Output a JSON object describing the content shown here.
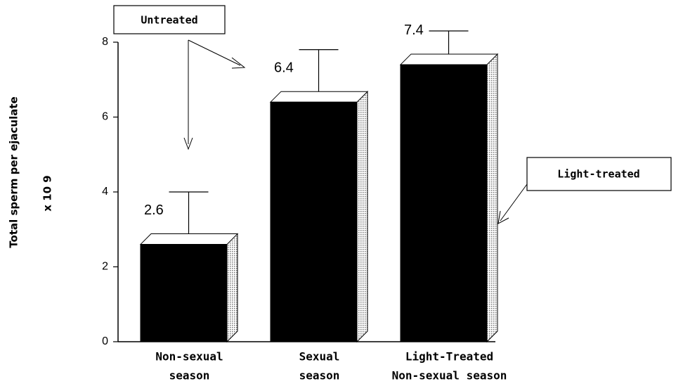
{
  "chart_data": {
    "type": "bar",
    "ylabel": "Total sperm per ejaculate",
    "ylabel_scale": "x 10 9",
    "categories": [
      [
        "Non-sexual",
        "season"
      ],
      [
        "Sexual",
        "season"
      ],
      [
        "Light-Treated",
        "Non-sexual season"
      ]
    ],
    "values": [
      2.6,
      6.4,
      7.4
    ],
    "value_labels": [
      "2.6",
      "6.4",
      "7.4"
    ],
    "errors": [
      1.4,
      1.4,
      0.9
    ],
    "color": "#000000",
    "side_color": "#bdbdbd",
    "ylim": [
      0,
      8
    ],
    "yticks": [
      0,
      2,
      4,
      6,
      8
    ],
    "annotations": [
      "Untreated",
      "Light-treated"
    ]
  }
}
